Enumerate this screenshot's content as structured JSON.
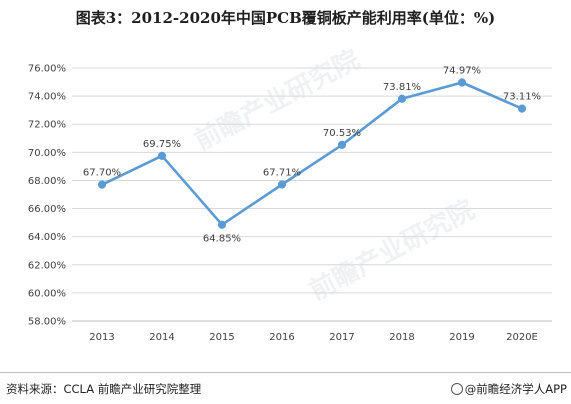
{
  "title": "图表3：2012-2020年中国PCB覆铜板产能利用率(单位：%)",
  "source": "资料来源：CCLA 前瞻产业研究院整理",
  "brand": "@前瞻经济学人APP",
  "watermark": "前瞻产业研究院",
  "colors": {
    "line": "#5b9bd5",
    "grid": "#d9d9d9",
    "axis": "#bfbfbf"
  },
  "chart_data": {
    "type": "line",
    "categories": [
      "2013",
      "2014",
      "2015",
      "2016",
      "2017",
      "2018",
      "2019",
      "2020E"
    ],
    "series": [
      {
        "values": [
          67.7,
          69.75,
          64.85,
          67.71,
          70.53,
          73.81,
          74.97,
          73.11
        ]
      }
    ],
    "data_labels": [
      "67.70%",
      "69.75%",
      "64.85%",
      "67.71%",
      "70.53%",
      "73.81%",
      "74.97%",
      "73.11%"
    ],
    "label_positions": [
      "above",
      "above",
      "below",
      "above",
      "above",
      "above",
      "above",
      "above"
    ],
    "y_ticks": [
      "58.00%",
      "60.00%",
      "62.00%",
      "64.00%",
      "66.00%",
      "68.00%",
      "70.00%",
      "72.00%",
      "74.00%",
      "76.00%"
    ],
    "ylim": [
      58,
      76
    ],
    "grid": true,
    "legend": "none",
    "xlabel": "",
    "ylabel": ""
  }
}
